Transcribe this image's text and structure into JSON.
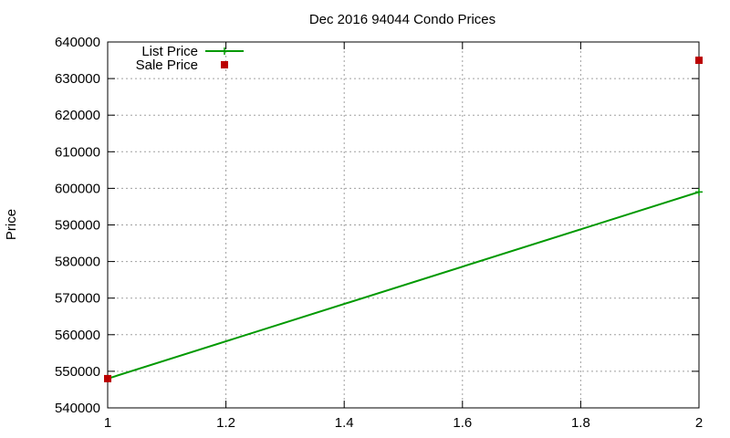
{
  "chart_data": {
    "type": "line",
    "title": "Dec 2016 94044 Condo Prices",
    "xlabel": "",
    "ylabel": "Price",
    "xlim": [
      1,
      2
    ],
    "ylim": [
      540000,
      640000
    ],
    "xticks": [
      1,
      1.2,
      1.4,
      1.6,
      1.8,
      2
    ],
    "xtick_labels": [
      "1",
      "1.2",
      "1.4",
      "1.6",
      "1.8",
      "2"
    ],
    "yticks": [
      540000,
      550000,
      560000,
      570000,
      580000,
      590000,
      600000,
      610000,
      620000,
      630000,
      640000
    ],
    "ytick_labels": [
      "540000",
      "550000",
      "560000",
      "570000",
      "580000",
      "590000",
      "600000",
      "610000",
      "620000",
      "630000",
      "640000"
    ],
    "grid": true,
    "legend_position": "top-left",
    "series": [
      {
        "name": "List Price",
        "style": "linespoints",
        "color": "#009900",
        "x": [
          1,
          2
        ],
        "y": [
          548000,
          599000
        ]
      },
      {
        "name": "Sale Price",
        "style": "points",
        "color": "#bb0000",
        "x": [
          1,
          2
        ],
        "y": [
          548000,
          635000
        ]
      }
    ]
  }
}
